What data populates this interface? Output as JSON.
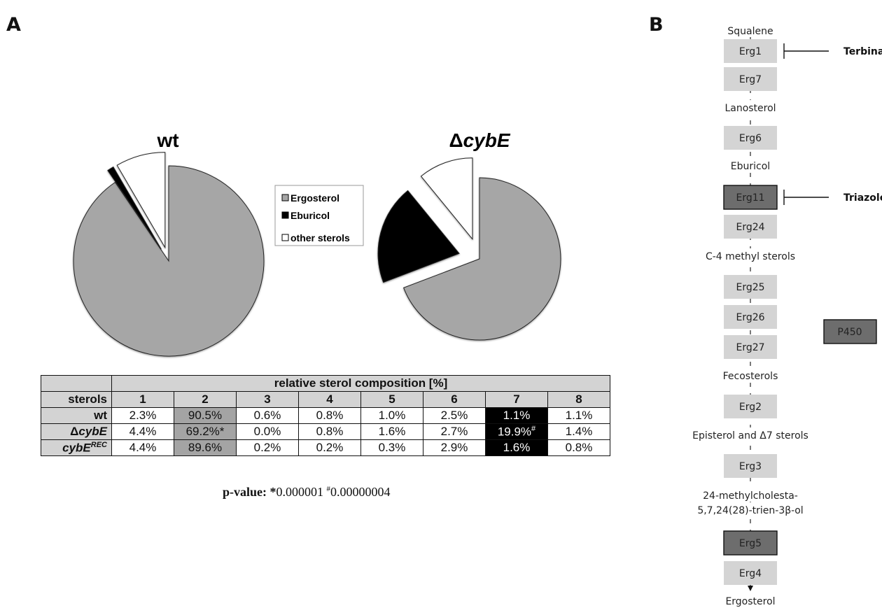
{
  "panels": {
    "a": "A",
    "b": "B"
  },
  "chart_data": [
    {
      "type": "pie",
      "title": "wt",
      "categories": [
        "Ergosterol",
        "Eburicol",
        "other sterols"
      ],
      "values": [
        90.5,
        1.1,
        8.4
      ],
      "colors": [
        "#a6a6a6",
        "#000000",
        "#ffffff"
      ]
    },
    {
      "type": "pie",
      "title_prefix": "Δ",
      "title_italic": "cybE",
      "categories": [
        "Ergosterol",
        "Eburicol",
        "other sterols"
      ],
      "values": [
        69.2,
        19.9,
        10.9
      ],
      "colors": [
        "#a6a6a6",
        "#000000",
        "#ffffff"
      ]
    },
    {
      "type": "table",
      "title": "relative sterol composition  [%]",
      "row_header": "sterols",
      "columns": [
        "1",
        "2",
        "3",
        "4",
        "5",
        "6",
        "7",
        "8"
      ],
      "rows": [
        {
          "label": "wt",
          "values": [
            "2.3%",
            "90.5%",
            "0.6%",
            "0.8%",
            "1.0%",
            "2.5%",
            "1.1%",
            "1.1%"
          ]
        },
        {
          "label_prefix": "Δ",
          "label_italic": "cybE",
          "values": [
            "4.4%",
            "69.2%*",
            "0.0%",
            "0.8%",
            "1.6%",
            "2.7%",
            "19.9%",
            "1.4%"
          ],
          "col7_mark": "#"
        },
        {
          "label_italic": "cybE",
          "label_sup": "REC",
          "values": [
            "4.4%",
            "89.6%",
            "0.2%",
            "0.2%",
            "0.3%",
            "2.9%",
            "1.6%",
            "0.8%"
          ]
        }
      ]
    }
  ],
  "legend": {
    "items": [
      "Ergosterol",
      "Eburicol",
      "other sterols"
    ],
    "colors": [
      "#a6a6a6",
      "#000000",
      "#ffffff"
    ]
  },
  "pvalue": {
    "label": "p-value:",
    "star": "*",
    "v1": "0.000001",
    "hash": "#",
    "v2": "0.00000004"
  },
  "pathway": {
    "nodes": [
      {
        "kind": "text",
        "label": "Squalene"
      },
      {
        "kind": "enzyme",
        "label": "Erg1",
        "inhibitor": "Terbinafine"
      },
      {
        "kind": "enzyme",
        "label": "Erg7"
      },
      {
        "kind": "text",
        "label": "Lanosterol"
      },
      {
        "kind": "enzyme",
        "label": "Erg6"
      },
      {
        "kind": "text",
        "label": "Eburicol"
      },
      {
        "kind": "enzyme",
        "label": "Erg11",
        "dark": true,
        "inhibitor": "Triazoles"
      },
      {
        "kind": "enzyme",
        "label": "Erg24"
      },
      {
        "kind": "text",
        "label": "C-4 methyl sterols"
      },
      {
        "kind": "enzyme",
        "label": "Erg25"
      },
      {
        "kind": "enzyme",
        "label": "Erg26"
      },
      {
        "kind": "enzyme",
        "label": "Erg27"
      },
      {
        "kind": "text",
        "label": "Fecosterols"
      },
      {
        "kind": "enzyme",
        "label": "Erg2"
      },
      {
        "kind": "text",
        "label": "Episterol and Δ7 sterols"
      },
      {
        "kind": "enzyme",
        "label": "Erg3"
      },
      {
        "kind": "text",
        "label": "24-methylcholesta-"
      },
      {
        "kind": "text",
        "label": "5,7,24(28)-trien-3β-ol"
      },
      {
        "kind": "enzyme",
        "label": "Erg5",
        "dark": true
      },
      {
        "kind": "enzyme",
        "label": "Erg4"
      },
      {
        "kind": "text",
        "label": "Ergosterol"
      }
    ],
    "legend_box": "P450"
  }
}
